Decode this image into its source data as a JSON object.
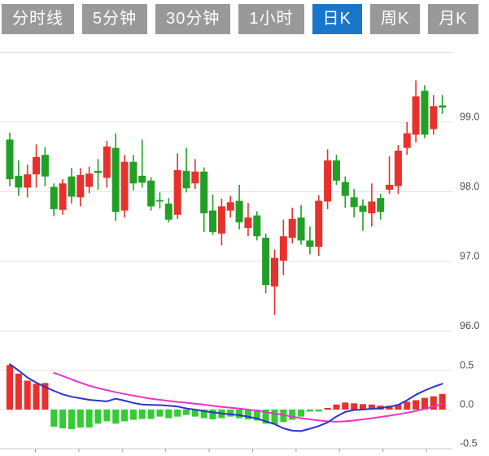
{
  "tabbar": {
    "tabs": [
      {
        "label": "分时线"
      },
      {
        "label": "5分钟"
      },
      {
        "label": "30分钟"
      },
      {
        "label": "1小时"
      },
      {
        "label": "日K"
      },
      {
        "label": "周K"
      },
      {
        "label": "月K"
      }
    ],
    "active_index": 4,
    "active_bg": "#1b76c9",
    "inactive_bg": "#999999",
    "text_color": "#ffffff"
  },
  "chart_data": {
    "type": "candlestick",
    "description": "Daily K-line candlestick price chart with MACD sub-chart",
    "price_axis": {
      "grid_values": [
        100,
        99,
        98,
        97,
        96
      ],
      "tick_labels": [
        {
          "value": 99,
          "text": "99.0"
        },
        {
          "value": 98,
          "text": "98.0"
        },
        {
          "value": 97,
          "text": "97.0"
        },
        {
          "value": 96,
          "text": "96.0"
        }
      ],
      "range": [
        95.8,
        100.1
      ]
    },
    "macd_axis": {
      "grid_values": [
        0.5,
        0
      ],
      "axis_value": -0.5,
      "tick_labels": [
        {
          "value": 0.5,
          "text": "0.5"
        },
        {
          "value": 0,
          "text": "0.0"
        },
        {
          "value": -0.5,
          "text": "-0.5"
        }
      ],
      "range": [
        -0.5,
        0.6
      ]
    },
    "x_axis": {
      "tick_count": 10,
      "labels_visible": false
    },
    "colors": {
      "up": "#e8302d",
      "down": "#22a025",
      "macd_up": "#e8302d",
      "macd_down": "#33cc33",
      "dif_line": "#2b35c8",
      "dea_line": "#ee32c8",
      "grid": "#e3e3e3",
      "axis_line": "#c8c8c8",
      "tick": "#999999",
      "axis_text": "#4d4d4d"
    },
    "candle_format": "[open, high, low, close]",
    "candles": [
      [
        98.75,
        98.85,
        98.08,
        98.18
      ],
      [
        98.23,
        98.45,
        97.94,
        98.06
      ],
      [
        98.06,
        98.39,
        97.92,
        98.25
      ],
      [
        98.25,
        98.68,
        98.06,
        98.5
      ],
      [
        98.53,
        98.64,
        98.08,
        98.22
      ],
      [
        98.07,
        98.12,
        97.65,
        97.75
      ],
      [
        97.74,
        98.18,
        97.67,
        98.12
      ],
      [
        98.22,
        98.34,
        97.83,
        97.93
      ],
      [
        97.92,
        98.34,
        97.79,
        98.24
      ],
      [
        98.07,
        98.36,
        97.98,
        98.26
      ],
      [
        98.3,
        98.47,
        98.03,
        98.27
      ],
      [
        98.2,
        98.73,
        98.06,
        98.65
      ],
      [
        98.63,
        98.84,
        97.58,
        97.71
      ],
      [
        97.73,
        98.53,
        97.63,
        98.43
      ],
      [
        98.43,
        98.53,
        98.02,
        98.12
      ],
      [
        98.23,
        98.75,
        98.06,
        98.13
      ],
      [
        98.16,
        98.21,
        97.73,
        97.79
      ],
      [
        97.88,
        97.99,
        97.76,
        97.86
      ],
      [
        97.83,
        97.91,
        97.56,
        97.6
      ],
      [
        97.67,
        98.55,
        97.61,
        98.31
      ],
      [
        98.3,
        98.63,
        97.99,
        98.05
      ],
      [
        98.12,
        98.47,
        98.04,
        98.29
      ],
      [
        98.29,
        98.35,
        97.42,
        97.69
      ],
      [
        97.73,
        97.96,
        97.38,
        97.42
      ],
      [
        97.4,
        97.9,
        97.23,
        97.79
      ],
      [
        97.73,
        97.94,
        97.63,
        97.85
      ],
      [
        97.87,
        98.1,
        97.46,
        97.56
      ],
      [
        97.48,
        97.84,
        97.36,
        97.63
      ],
      [
        97.66,
        97.72,
        97.3,
        97.36
      ],
      [
        97.34,
        97.4,
        96.54,
        96.66
      ],
      [
        96.64,
        97.17,
        96.23,
        97.05
      ],
      [
        97.01,
        97.6,
        96.8,
        97.36
      ],
      [
        97.34,
        97.77,
        97.26,
        97.61
      ],
      [
        97.63,
        97.81,
        97.24,
        97.3
      ],
      [
        97.3,
        97.5,
        97.1,
        97.21
      ],
      [
        97.21,
        97.95,
        97.08,
        97.87
      ],
      [
        97.86,
        98.61,
        97.75,
        98.45
      ],
      [
        98.45,
        98.53,
        98.1,
        98.16
      ],
      [
        98.14,
        98.22,
        97.77,
        97.94
      ],
      [
        97.92,
        98.04,
        97.63,
        97.78
      ],
      [
        97.8,
        97.89,
        97.44,
        97.71
      ],
      [
        97.69,
        98.12,
        97.5,
        97.86
      ],
      [
        97.91,
        97.97,
        97.6,
        97.71
      ],
      [
        98.03,
        98.51,
        97.97,
        98.1
      ],
      [
        98.08,
        98.67,
        97.97,
        98.59
      ],
      [
        98.63,
        99.0,
        98.53,
        98.84
      ],
      [
        98.82,
        99.6,
        98.71,
        99.37
      ],
      [
        99.45,
        99.53,
        98.77,
        98.82
      ],
      [
        98.9,
        99.39,
        98.82,
        99.23
      ],
      [
        99.24,
        99.39,
        99.12,
        99.21
      ]
    ],
    "macd": {
      "histogram": [
        0.57,
        0.46,
        0.37,
        0.33,
        0.34,
        -0.22,
        -0.24,
        -0.25,
        -0.23,
        -0.23,
        -0.18,
        -0.15,
        -0.18,
        -0.15,
        -0.13,
        -0.12,
        -0.12,
        -0.09,
        -0.11,
        -0.09,
        -0.07,
        -0.09,
        -0.11,
        -0.125,
        -0.11,
        -0.09,
        -0.11,
        -0.125,
        -0.14,
        -0.18,
        -0.19,
        -0.16,
        -0.13,
        -0.09,
        -0.025,
        -0.025,
        0.005,
        0.065,
        0.09,
        0.08,
        0.07,
        0.065,
        0.05,
        0.05,
        0.065,
        0.1,
        0.12,
        0.15,
        0.17,
        0.2
      ],
      "dif": [
        0.58,
        0.5,
        0.41,
        0.345,
        0.29,
        0.24,
        0.195,
        0.165,
        0.145,
        0.125,
        0.115,
        0.105,
        0.14,
        0.115,
        0.085,
        0.065,
        0.06,
        0.057,
        0.05,
        0.04,
        0.015,
        0.0,
        -0.02,
        -0.035,
        -0.05,
        -0.06,
        -0.072,
        -0.09,
        -0.115,
        -0.15,
        -0.185,
        -0.24,
        -0.27,
        -0.275,
        -0.245,
        -0.21,
        -0.165,
        -0.09,
        -0.03,
        -0.005,
        0.0,
        0.01,
        0.02,
        0.035,
        0.06,
        0.12,
        0.19,
        0.245,
        0.29,
        0.33
      ],
      "dea": [
        null,
        null,
        null,
        null,
        null,
        0.47,
        0.43,
        0.385,
        0.345,
        0.305,
        0.275,
        0.248,
        0.222,
        0.2,
        0.178,
        0.158,
        0.14,
        0.125,
        0.11,
        0.098,
        0.088,
        0.075,
        0.062,
        0.048,
        0.035,
        0.024,
        0.012,
        0.0,
        -0.015,
        -0.032,
        -0.05,
        -0.07,
        -0.09,
        -0.11,
        -0.125,
        -0.14,
        -0.15,
        -0.155,
        -0.15,
        -0.14,
        -0.125,
        -0.11,
        -0.095,
        -0.078,
        -0.06,
        -0.04,
        -0.018,
        0.008,
        0.04,
        0.075
      ]
    }
  }
}
